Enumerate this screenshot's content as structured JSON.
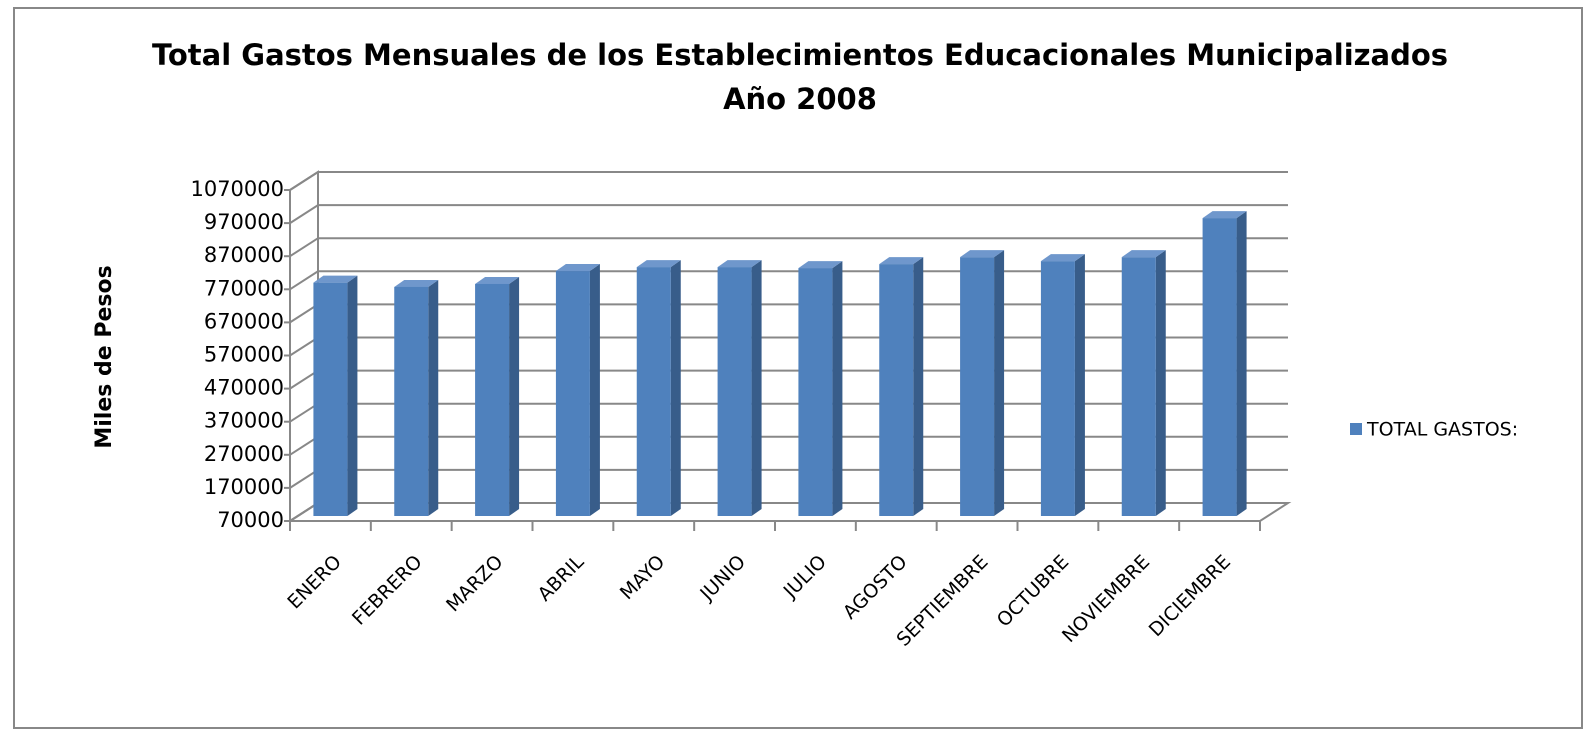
{
  "chart_data": {
    "type": "bar3d",
    "title": "Total Gastos Mensuales de los Establecimientos Educacionales Municipalizados",
    "subtitle": "Año 2008",
    "y_label": "Miles de Pesos",
    "categories": [
      "ENERO",
      "FEBRERO",
      "MARZO",
      "ABRIL",
      "MAYO",
      "JUNIO",
      "JULIO",
      "AGOSTO",
      "SEPTIEMBRE",
      "OCTUBRE",
      "NOVIEMBRE",
      "DICIEMBRE"
    ],
    "series": [
      {
        "name": "TOTAL GASTOS:",
        "color": "#4f81bd",
        "values": [
          775000,
          762000,
          771000,
          810000,
          822000,
          822000,
          819000,
          831000,
          852000,
          840000,
          852000,
          970000
        ]
      }
    ],
    "ylim": [
      70000,
      1070000
    ],
    "yticks": [
      70000,
      170000,
      270000,
      370000,
      470000,
      570000,
      670000,
      770000,
      870000,
      970000,
      1070000
    ],
    "grid": true,
    "legend": "right"
  }
}
